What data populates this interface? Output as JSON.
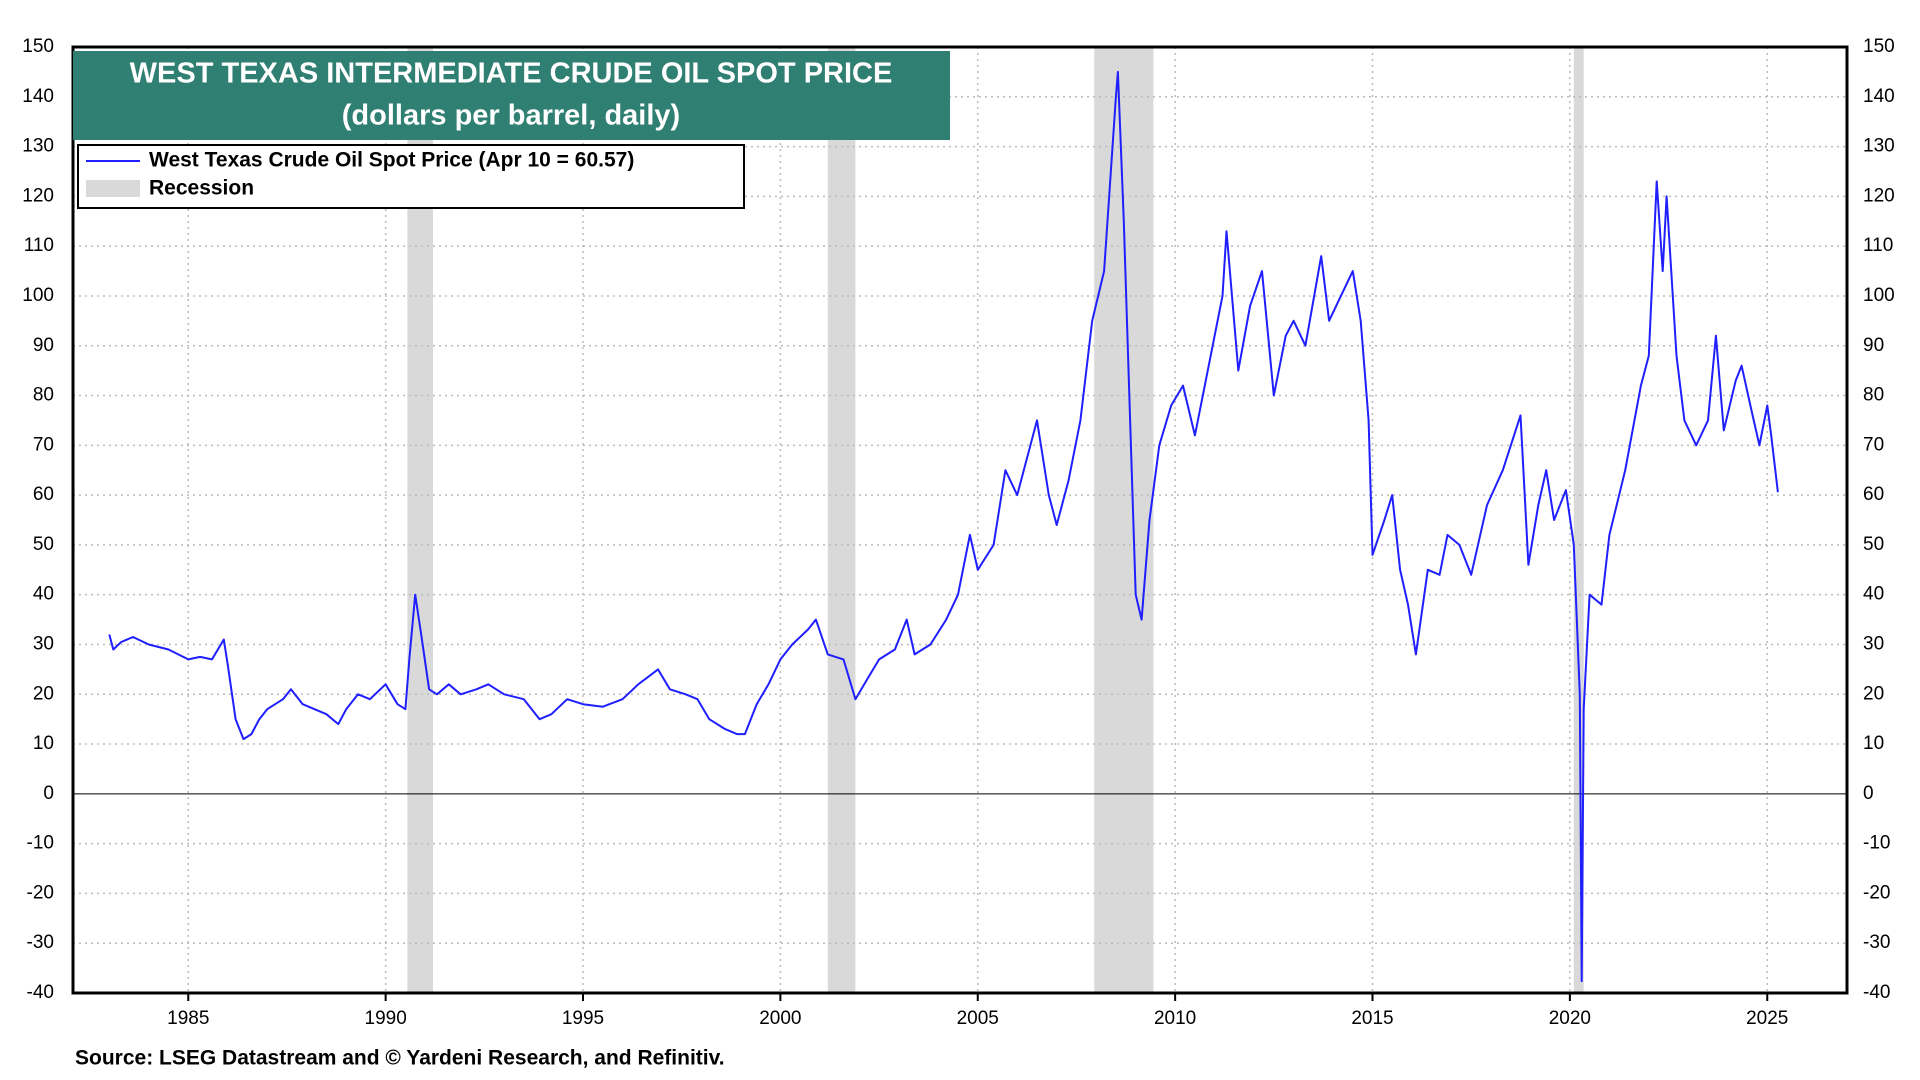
{
  "chart_data": {
    "type": "line",
    "title": "WEST TEXAS INTERMEDIATE CRUDE OIL SPOT PRICE",
    "subtitle": "(dollars per barrel, daily)",
    "source": "Source: LSEG Datastream and © Yardeni Research, and Refinitiv.",
    "x": [
      1983.0,
      1983.1,
      1983.3,
      1983.6,
      1984.0,
      1984.5,
      1985.0,
      1985.3,
      1985.6,
      1985.9,
      1986.0,
      1986.2,
      1986.4,
      1986.6,
      1986.8,
      1987.0,
      1987.4,
      1987.6,
      1987.9,
      1988.2,
      1988.5,
      1988.8,
      1989.0,
      1989.3,
      1989.6,
      1990.0,
      1990.3,
      1990.5,
      1990.6,
      1990.75,
      1990.9,
      1991.1,
      1991.3,
      1991.6,
      1991.9,
      1992.3,
      1992.6,
      1993.0,
      1993.5,
      1993.9,
      1994.2,
      1994.6,
      1995.0,
      1995.5,
      1996.0,
      1996.4,
      1996.9,
      1997.2,
      1997.6,
      1997.9,
      1998.2,
      1998.6,
      1998.9,
      1999.1,
      1999.4,
      1999.7,
      2000.0,
      2000.3,
      2000.7,
      2000.9,
      2001.2,
      2001.6,
      2001.9,
      2002.2,
      2002.5,
      2002.9,
      2003.2,
      2003.4,
      2003.8,
      2004.2,
      2004.5,
      2004.8,
      2005.0,
      2005.4,
      2005.7,
      2006.0,
      2006.5,
      2006.8,
      2007.0,
      2007.3,
      2007.6,
      2007.9,
      2008.2,
      2008.5,
      2008.55,
      2008.7,
      2008.9,
      2009.0,
      2009.15,
      2009.35,
      2009.6,
      2009.9,
      2010.2,
      2010.5,
      2010.9,
      2011.2,
      2011.3,
      2011.6,
      2011.9,
      2012.2,
      2012.5,
      2012.8,
      2013.0,
      2013.3,
      2013.7,
      2013.9,
      2014.2,
      2014.5,
      2014.7,
      2014.9,
      2015.0,
      2015.3,
      2015.5,
      2015.7,
      2015.9,
      2016.1,
      2016.4,
      2016.7,
      2016.9,
      2017.2,
      2017.5,
      2017.9,
      2018.3,
      2018.75,
      2018.95,
      2019.2,
      2019.4,
      2019.6,
      2019.9,
      2020.1,
      2020.25,
      2020.3,
      2020.35,
      2020.5,
      2020.8,
      2021.0,
      2021.4,
      2021.8,
      2022.0,
      2022.2,
      2022.35,
      2022.45,
      2022.7,
      2022.9,
      2023.2,
      2023.5,
      2023.7,
      2023.9,
      2024.2,
      2024.35,
      2024.6,
      2024.8,
      2025.0,
      2025.1,
      2025.27
    ],
    "series": [
      {
        "name": "West Texas Crude Oil Spot Price (Apr 10 = 60.57)",
        "color": "#1f1fff",
        "values": [
          32,
          29,
          30.5,
          31.5,
          30,
          29,
          27,
          27.5,
          27,
          31,
          26,
          15,
          11,
          12,
          15,
          17,
          19,
          21,
          18,
          17,
          16,
          14,
          17,
          20,
          19,
          22,
          18,
          17,
          27,
          40,
          32,
          21,
          20,
          22,
          20,
          21,
          22,
          20,
          19,
          15,
          16,
          19,
          18,
          17.5,
          19,
          22,
          25,
          21,
          20,
          19,
          15,
          13,
          12,
          12,
          18,
          22,
          27,
          30,
          33,
          35,
          28,
          27,
          19,
          23,
          27,
          29,
          35,
          28,
          30,
          35,
          40,
          52,
          45,
          50,
          65,
          60,
          75,
          60,
          54,
          63,
          75,
          95,
          105,
          140,
          145,
          115,
          65,
          40,
          35,
          55,
          70,
          78,
          82,
          72,
          88,
          100,
          113,
          85,
          98,
          105,
          80,
          92,
          95,
          90,
          108,
          95,
          100,
          105,
          95,
          75,
          48,
          55,
          60,
          45,
          38,
          28,
          45,
          44,
          52,
          50,
          44,
          58,
          65,
          76,
          46,
          58,
          65,
          55,
          61,
          50,
          20,
          -37.6,
          17,
          40,
          38,
          52,
          65,
          82,
          88,
          123,
          105,
          120,
          88,
          75,
          70,
          75,
          92,
          73,
          83,
          86,
          77,
          70,
          78,
          72,
          60.57
        ]
      }
    ],
    "recession_label": "Recession",
    "recession_color": "#d9d9d9",
    "recessions": [
      [
        1990.55,
        1991.2
      ],
      [
        2001.2,
        2001.9
      ],
      [
        2007.95,
        2009.45
      ],
      [
        2020.1,
        2020.35
      ]
    ],
    "xlim": [
      1982.08,
      2027.02
    ],
    "xticks": [
      1985,
      1990,
      1995,
      2000,
      2005,
      2010,
      2015,
      2020,
      2025
    ],
    "ylim": [
      -40,
      150
    ],
    "yticks": [
      -40,
      -30,
      -20,
      -10,
      0,
      10,
      20,
      30,
      40,
      50,
      60,
      70,
      80,
      90,
      100,
      110,
      120,
      130,
      140,
      150
    ],
    "grid": true
  }
}
